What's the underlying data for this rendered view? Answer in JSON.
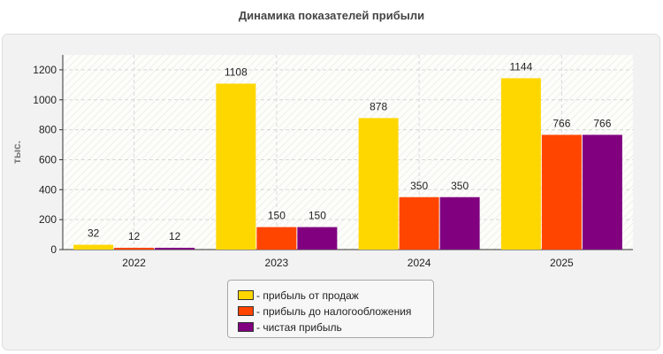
{
  "chart_data": {
    "type": "bar",
    "title": "Динамика показателей прибыли",
    "ylabel": "тыс.",
    "xlabel": "",
    "categories": [
      "2022",
      "2023",
      "2024",
      "2025"
    ],
    "ylim": [
      0,
      1300
    ],
    "yticks": [
      0,
      200,
      400,
      600,
      800,
      1000,
      1200
    ],
    "grid": true,
    "legend_position": "bottom-center",
    "series": [
      {
        "name": "- прибыль от продаж",
        "color": "#ffd700",
        "values": [
          32,
          1108,
          878,
          1144
        ],
        "labels": [
          "32",
          "1108",
          "878",
          "1144"
        ]
      },
      {
        "name": "- прибыль до налогообложения",
        "color": "#ff4500",
        "values": [
          12,
          150,
          350,
          766
        ],
        "labels": [
          "12",
          "150",
          "350",
          "766"
        ]
      },
      {
        "name": "- чистая прибыль",
        "color": "#800080",
        "values": [
          12,
          150,
          350,
          766
        ],
        "labels": [
          "12",
          "150",
          "350",
          "766"
        ]
      }
    ]
  }
}
